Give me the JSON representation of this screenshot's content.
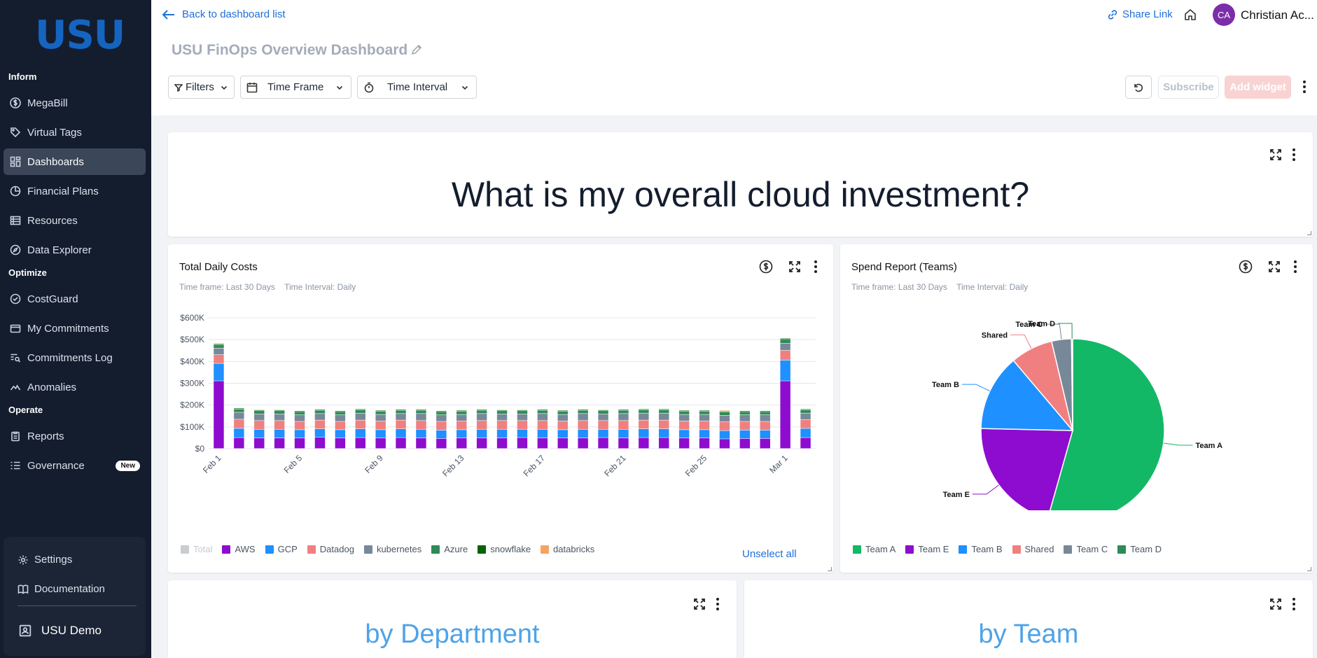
{
  "sidebar": {
    "logo": "USU",
    "sections": {
      "inform": "Inform",
      "optimize": "Optimize",
      "operate": "Operate"
    },
    "items": [
      {
        "label": "MegaBill",
        "icon": "dollar-circle-icon"
      },
      {
        "label": "Virtual Tags",
        "icon": "tag-icon"
      },
      {
        "label": "Dashboards",
        "icon": "dashboard-icon",
        "active": true
      },
      {
        "label": "Financial Plans",
        "icon": "pie-icon"
      },
      {
        "label": "Resources",
        "icon": "table-icon"
      },
      {
        "label": "Data Explorer",
        "icon": "compass-icon"
      },
      {
        "label": "CostGuard",
        "icon": "check-circle-icon"
      },
      {
        "label": "My Commitments",
        "icon": "wallet-icon"
      },
      {
        "label": "Commitments Log",
        "icon": "log-search-icon"
      },
      {
        "label": "Anomalies",
        "icon": "anomaly-icon"
      },
      {
        "label": "Reports",
        "icon": "clipboard-icon"
      },
      {
        "label": "Governance",
        "icon": "list-icon",
        "badge": "New"
      }
    ],
    "bottom": {
      "settings": "Settings",
      "documentation": "Documentation",
      "account": "USU Demo"
    }
  },
  "header": {
    "back_link": "Back to dashboard list",
    "title": "USU FinOps Overview Dashboard",
    "share_link": "Share Link",
    "user_initials": "CA",
    "user_name": "Christian Ac...",
    "filters": "Filters",
    "time_frame": "Time Frame",
    "time_interval": "Time Interval",
    "subscribe": "Subscribe",
    "add_widget": "Add widget"
  },
  "headline_card": {
    "text": "What is my overall cloud investment?"
  },
  "daily_costs_card": {
    "title": "Total Daily Costs",
    "time_frame": "Time frame: Last 30 Days",
    "time_interval": "Time Interval: Daily",
    "unselect_all": "Unselect all"
  },
  "spend_card": {
    "title": "Spend Report (Teams)",
    "time_frame": "Time frame: Last 30 Days",
    "time_interval": "Time Interval: Daily"
  },
  "dept_card": {
    "text": "by Department"
  },
  "team_card": {
    "text": "by Team"
  },
  "chart_data": [
    {
      "type": "bar",
      "stacked": true,
      "title": "Total Daily Costs",
      "ylabel": "",
      "ylim": [
        0,
        600000
      ],
      "ytick_labels": [
        "$0",
        "$100K",
        "$200K",
        "$300K",
        "$400K",
        "$500K",
        "$600K"
      ],
      "xtick_labels": [
        "Feb 1",
        "Feb 5",
        "Feb 9",
        "Feb 13",
        "Feb 17",
        "Feb 21",
        "Feb 25",
        "Mar 1"
      ],
      "categories": [
        "Feb 1",
        "Feb 2",
        "Feb 3",
        "Feb 4",
        "Feb 5",
        "Feb 6",
        "Feb 7",
        "Feb 8",
        "Feb 9",
        "Feb 10",
        "Feb 11",
        "Feb 12",
        "Feb 13",
        "Feb 14",
        "Feb 15",
        "Feb 16",
        "Feb 17",
        "Feb 18",
        "Feb 19",
        "Feb 20",
        "Feb 21",
        "Feb 22",
        "Feb 23",
        "Feb 24",
        "Feb 25",
        "Feb 26",
        "Feb 27",
        "Feb 28",
        "Mar 1",
        "Mar 2"
      ],
      "legend": [
        {
          "name": "Total",
          "color": "#c9ccd1",
          "disabled": true
        },
        {
          "name": "AWS",
          "color": "#8e0ccf"
        },
        {
          "name": "GCP",
          "color": "#1e90ff"
        },
        {
          "name": "Datadog",
          "color": "#f08080"
        },
        {
          "name": "kubernetes",
          "color": "#778899"
        },
        {
          "name": "Azure",
          "color": "#2e8b57"
        },
        {
          "name": "snowflake",
          "color": "#006400"
        },
        {
          "name": "databricks",
          "color": "#f4a460"
        }
      ],
      "series": [
        {
          "name": "AWS",
          "values": [
            310000,
            50000,
            48000,
            48000,
            48000,
            52000,
            48000,
            50000,
            48000,
            50000,
            48000,
            46000,
            48000,
            48000,
            48000,
            50000,
            48000,
            48000,
            48000,
            50000,
            48000,
            50000,
            50000,
            48000,
            48000,
            44000,
            46000,
            46000,
            310000,
            50000
          ]
        },
        {
          "name": "GCP",
          "values": [
            80000,
            42000,
            40000,
            40000,
            38000,
            38000,
            38000,
            40000,
            38000,
            40000,
            40000,
            38000,
            38000,
            40000,
            40000,
            38000,
            40000,
            38000,
            40000,
            38000,
            40000,
            40000,
            40000,
            38000,
            38000,
            38000,
            38000,
            38000,
            95000,
            42000
          ]
        },
        {
          "name": "Datadog",
          "values": [
            40000,
            42000,
            40000,
            40000,
            38000,
            40000,
            38000,
            40000,
            40000,
            40000,
            40000,
            40000,
            40000,
            40000,
            40000,
            40000,
            40000,
            40000,
            40000,
            40000,
            40000,
            40000,
            40000,
            40000,
            40000,
            40000,
            40000,
            40000,
            45000,
            40000
          ]
        },
        {
          "name": "kubernetes",
          "values": [
            30000,
            32000,
            30000,
            30000,
            30000,
            30000,
            30000,
            32000,
            30000,
            30000,
            32000,
            30000,
            30000,
            32000,
            30000,
            30000,
            32000,
            30000,
            32000,
            30000,
            32000,
            32000,
            32000,
            30000,
            30000,
            30000,
            30000,
            30000,
            32000,
            30000
          ]
        },
        {
          "name": "Azure",
          "values": [
            15000,
            15000,
            15000,
            15000,
            15000,
            15000,
            15000,
            15000,
            15000,
            15000,
            15000,
            15000,
            15000,
            15000,
            15000,
            15000,
            15000,
            15000,
            15000,
            15000,
            15000,
            15000,
            15000,
            15000,
            15000,
            15000,
            15000,
            15000,
            18000,
            15000
          ]
        },
        {
          "name": "snowflake",
          "values": [
            5000,
            4000,
            4000,
            4000,
            4000,
            4000,
            4000,
            4000,
            4000,
            4000,
            4000,
            4000,
            4000,
            4000,
            4000,
            4000,
            4000,
            4000,
            4000,
            4000,
            4000,
            4000,
            4000,
            4000,
            4000,
            4000,
            4000,
            4000,
            5000,
            4000
          ]
        },
        {
          "name": "databricks",
          "values": [
            0,
            0,
            0,
            0,
            0,
            0,
            0,
            0,
            0,
            0,
            0,
            0,
            0,
            0,
            0,
            0,
            0,
            0,
            0,
            0,
            0,
            0,
            0,
            0,
            0,
            4000,
            0,
            0,
            0,
            0
          ]
        }
      ]
    },
    {
      "type": "pie",
      "title": "Spend Report (Teams)",
      "slices": [
        {
          "name": "Team A",
          "value": 54.5,
          "color": "#12b866"
        },
        {
          "name": "Team E",
          "value": 21.0,
          "color": "#8e0ccf"
        },
        {
          "name": "Team B",
          "value": 13.5,
          "color": "#1e90ff"
        },
        {
          "name": "Shared",
          "value": 7.5,
          "color": "#f08080"
        },
        {
          "name": "Team C",
          "value": 3.5,
          "color": "#778899"
        },
        {
          "name": "Team D",
          "value": 0.2,
          "color": "#2e8b57"
        }
      ]
    }
  ]
}
